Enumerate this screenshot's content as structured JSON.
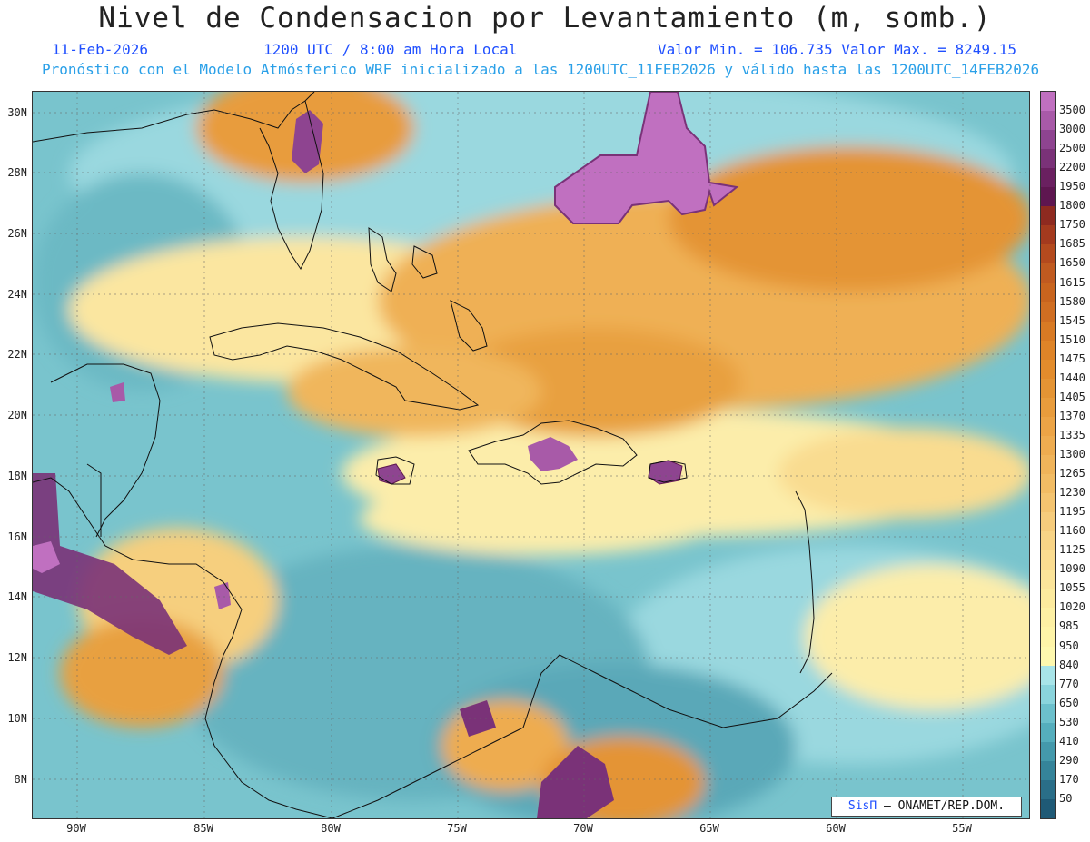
{
  "title": "Nivel de Condensacion por Levantamiento (m, somb.)",
  "header": {
    "date": "11-Feb-2026",
    "time": "1200 UTC / 8:00 am Hora Local",
    "minmax": "Valor Min. = 106.735  Valor Max. = 8249.15",
    "model_line": "Pronóstico con el Modelo Atmósferico WRF inicializado a las 1200UTC_11FEB2026 y válido hasta las  1200UTC_14FEB2026"
  },
  "axes": {
    "lat_labels": [
      "30N",
      "28N",
      "26N",
      "24N",
      "22N",
      "20N",
      "18N",
      "16N",
      "14N",
      "12N",
      "10N",
      "8N"
    ],
    "lon_labels": [
      "90W",
      "85W",
      "80W",
      "75W",
      "70W",
      "65W",
      "60W",
      "55W"
    ]
  },
  "legend": {
    "levels": [
      "3500",
      "3000",
      "2500",
      "2200",
      "1950",
      "1800",
      "1750",
      "1685",
      "1650",
      "1615",
      "1580",
      "1545",
      "1510",
      "1475",
      "1440",
      "1405",
      "1370",
      "1335",
      "1300",
      "1265",
      "1230",
      "1195",
      "1160",
      "1125",
      "1090",
      "1055",
      "1020",
      "985",
      "950",
      "840",
      "770",
      "650",
      "530",
      "410",
      "290",
      "170",
      "50"
    ],
    "colors": [
      "#c070c0",
      "#a85aa8",
      "#8e4490",
      "#7a3278",
      "#6a2060",
      "#5e1650",
      "#8e2a20",
      "#a43a1e",
      "#b44a1e",
      "#c05a20",
      "#c8641e",
      "#d06e22",
      "#d87a24",
      "#de8428",
      "#e28c2c",
      "#e49434",
      "#e89c3c",
      "#eca446",
      "#eeac50",
      "#f0b45a",
      "#f2bc64",
      "#f4c470",
      "#f6cc7c",
      "#f8d486",
      "#fadc90",
      "#fbe49a",
      "#fcea9e",
      "#fdf0a4",
      "#fef4a8",
      "#fef8ae",
      "#a8e4e8",
      "#8ad4dc",
      "#6cc0cc",
      "#55aebd",
      "#4499ab",
      "#35849a",
      "#2a6e88",
      "#1f5a76"
    ]
  },
  "credit": {
    "brand": "SisΠ",
    "org": "– ONAMET/REP.DOM."
  }
}
